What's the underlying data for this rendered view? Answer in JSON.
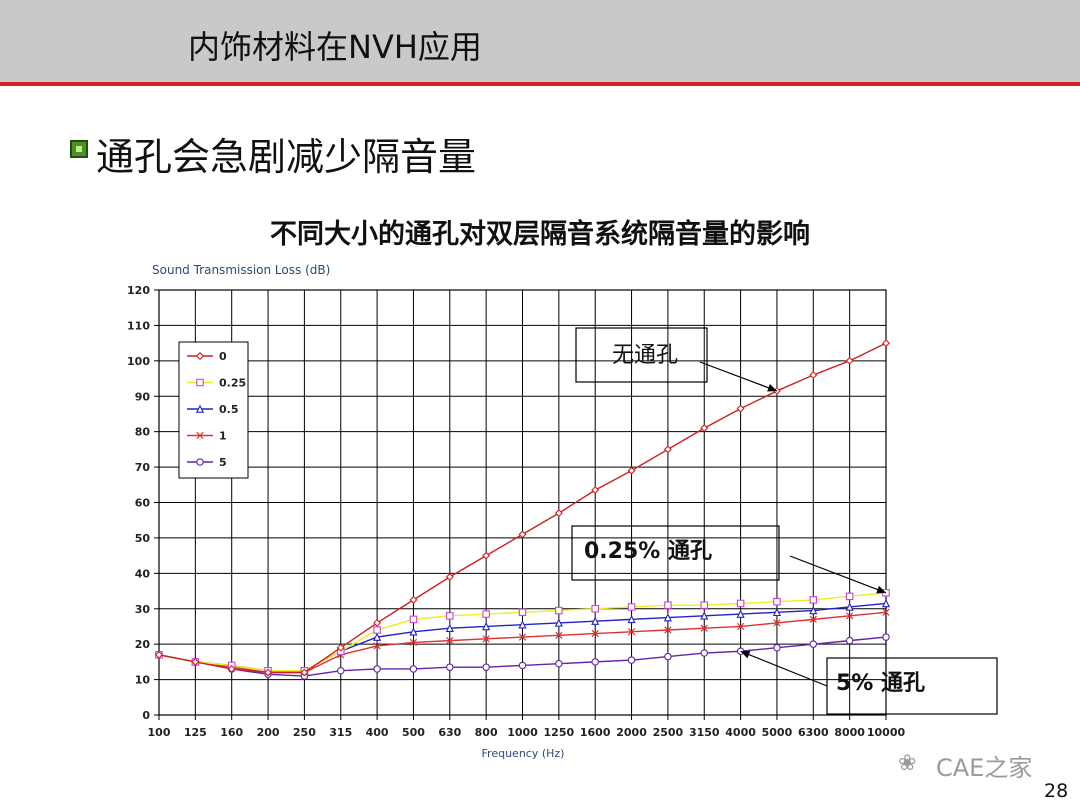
{
  "slide": {
    "title": "内饰材料在NVH应用",
    "bullet_text": "通孔会急剧减少隔音量",
    "page_number": "28",
    "watermark": "CAE之家"
  },
  "colors": {
    "header_bg": "#c9c9c9",
    "header_line": "#d31f2a",
    "bullet": "#4f8f2a"
  },
  "chart_data": {
    "type": "line",
    "title": "不同大小的通孔对双层隔音系统隔音量的影响",
    "ylabel": "Sound Transmission Loss (dB)",
    "xlabel": "Frequency (Hz)",
    "categories": [
      "100",
      "125",
      "160",
      "200",
      "250",
      "315",
      "400",
      "500",
      "630",
      "800",
      "1000",
      "1250",
      "1600",
      "2000",
      "2500",
      "3150",
      "4000",
      "5000",
      "6300",
      "8000",
      "10000"
    ],
    "ylim": [
      0,
      120
    ],
    "yticks": [
      0,
      10,
      20,
      30,
      40,
      50,
      60,
      70,
      80,
      90,
      100,
      110,
      120
    ],
    "grid": true,
    "legend_position": "top-left",
    "series": [
      {
        "name": "0",
        "color": "#cc2222",
        "marker": "diamond",
        "values": [
          17,
          15,
          13,
          12,
          12,
          19,
          26,
          32.5,
          39,
          45,
          51,
          57,
          63.5,
          69,
          75,
          81,
          86.5,
          91.5,
          96,
          100,
          105
        ]
      },
      {
        "name": "0.25",
        "color": "#eeee22",
        "marker": "square",
        "values": [
          17,
          15,
          14,
          12.5,
          12.5,
          18,
          24,
          27,
          28,
          28.5,
          29,
          29.5,
          30,
          30.5,
          31,
          31,
          31.5,
          32,
          32.5,
          33.5,
          34.5
        ]
      },
      {
        "name": "0.5",
        "color": "#2222cc",
        "marker": "triangle",
        "values": [
          17,
          15,
          14,
          12.5,
          12.5,
          18,
          22,
          23.5,
          24.5,
          25,
          25.5,
          26,
          26.5,
          27,
          27.5,
          28,
          28.5,
          29,
          29.5,
          30.5,
          31.5
        ]
      },
      {
        "name": "1",
        "color": "#dd3333",
        "marker": "x",
        "values": [
          17,
          15,
          13.5,
          12,
          12,
          17,
          19.5,
          20.5,
          21,
          21.5,
          22,
          22.5,
          23,
          23.5,
          24,
          24.5,
          25,
          26,
          27,
          28,
          29
        ]
      },
      {
        "name": "5",
        "color": "#6622aa",
        "marker": "circle",
        "values": [
          17,
          15,
          13,
          11.5,
          11,
          12.5,
          13,
          13,
          13.5,
          13.5,
          14,
          14.5,
          15,
          15.5,
          16.5,
          17.5,
          18,
          19,
          20,
          21,
          22
        ]
      }
    ],
    "annotations": [
      {
        "text": "无通孔",
        "target_series": "0",
        "target_category": "5000"
      },
      {
        "text": "0.25% 通孔",
        "target_series": "0.25",
        "target_category": "10000"
      },
      {
        "text": "5% 通孔",
        "target_series": "5",
        "target_category": "4000"
      }
    ]
  }
}
